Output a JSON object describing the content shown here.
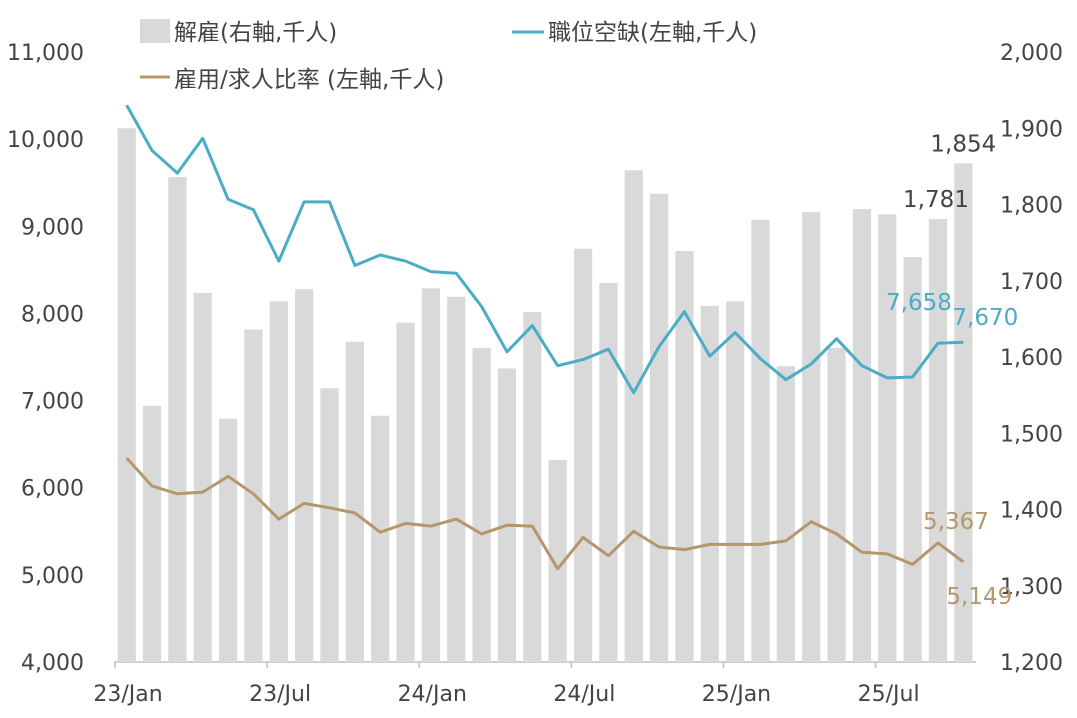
{
  "chart_data": {
    "type": "bar+line",
    "x_labels": [
      "23/Jan",
      "23/Jul",
      "24/Jan",
      "24/Jul",
      "25/Jan",
      "25/Jul"
    ],
    "x_label_index": [
      0,
      6,
      12,
      18,
      24,
      30
    ],
    "n_points": 34,
    "left_axis": {
      "min": 4000,
      "max": 11000,
      "step": 1000,
      "tick_labels": [
        "4,000",
        "5,000",
        "6,000",
        "7,000",
        "8,000",
        "9,000",
        "10,000",
        "11,000"
      ]
    },
    "right_axis": {
      "min": 1200,
      "max": 2000,
      "step": 100,
      "tick_labels": [
        "1,200",
        "1,300",
        "1,400",
        "1,500",
        "1,600",
        "1,700",
        "1,800",
        "1,900",
        "2,000"
      ]
    },
    "series": [
      {
        "name": "解雇(右軸,千人)",
        "kind": "bar",
        "axis": "right",
        "color": "#d9d9d9",
        "values": [
          1900,
          1536,
          1836,
          1684,
          1519,
          1636,
          1673,
          1689,
          1559,
          1620,
          1523,
          1645,
          1690,
          1679,
          1612,
          1585,
          1659,
          1465,
          1742,
          1697,
          1845,
          1814,
          1739,
          1667,
          1673,
          1780,
          1588,
          1790,
          1612,
          1794,
          1787,
          1731,
          1781,
          1854
        ]
      },
      {
        "name": "職位空缺(左軸,千人)",
        "kind": "line",
        "axis": "left",
        "color": "#4bacc6",
        "values": [
          10390,
          9870,
          9610,
          10010,
          9310,
          9190,
          8600,
          9280,
          9280,
          8550,
          8670,
          8600,
          8480,
          8460,
          8080,
          7560,
          7860,
          7400,
          7470,
          7590,
          7090,
          7620,
          8020,
          7510,
          7780,
          7480,
          7240,
          7420,
          7710,
          7400,
          7260,
          7270,
          7658,
          7670
        ]
      },
      {
        "name": "雇用/求人比率 (左軸,千人)",
        "kind": "line",
        "axis": "left",
        "color": "#b5976b",
        "values": [
          6340,
          6020,
          5930,
          5950,
          6130,
          5930,
          5640,
          5820,
          5770,
          5710,
          5490,
          5590,
          5560,
          5640,
          5470,
          5570,
          5560,
          5070,
          5430,
          5220,
          5500,
          5320,
          5290,
          5350,
          5350,
          5350,
          5390,
          5610,
          5470,
          5260,
          5240,
          5120,
          5367,
          5149
        ]
      }
    ],
    "data_labels": [
      {
        "series": 0,
        "index": 32,
        "text": "1,781",
        "color": "#444444"
      },
      {
        "series": 0,
        "index": 33,
        "text": "1,854",
        "color": "#444444"
      },
      {
        "series": 1,
        "index": 32,
        "text": "7,658",
        "color": "#4bacc6"
      },
      {
        "series": 1,
        "index": 33,
        "text": "7,670",
        "color": "#4bacc6"
      },
      {
        "series": 2,
        "index": 32,
        "text": "5,367",
        "color": "#b5976b"
      },
      {
        "series": 2,
        "index": 33,
        "text": "5,149",
        "color": "#b5976b"
      }
    ],
    "legend_position": "top"
  }
}
